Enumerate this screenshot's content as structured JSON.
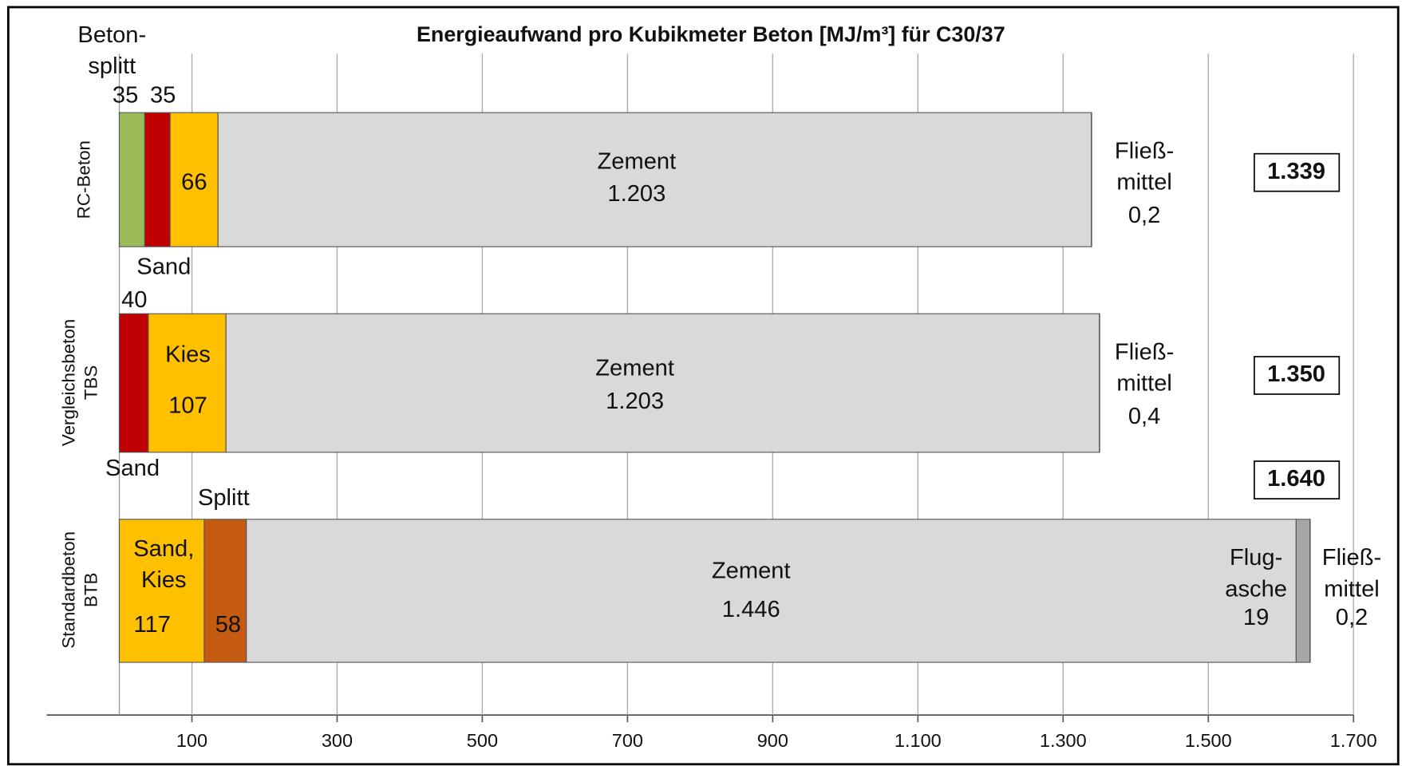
{
  "chart_data": {
    "type": "stacked-hbar",
    "title": "Energieaufwand pro Kubikmeter Beton [MJ/m³] für C30/37",
    "xlim": [
      -100,
      1700
    ],
    "xticks": [
      100,
      300,
      500,
      700,
      900,
      {
        "value": 1100,
        "label": "1.100"
      },
      {
        "value": 1300,
        "label": "1.300"
      },
      {
        "value": 1500,
        "label": "1.500"
      },
      {
        "value": 1700,
        "label": "1.700"
      }
    ],
    "grid": true,
    "bars": [
      {
        "category": "RC-Beton",
        "total": 1339,
        "total_label": "1.339",
        "segments": [
          {
            "name": "Beton-splitt",
            "value": 35,
            "color": "#9bbb59"
          },
          {
            "name": "Sand",
            "value": 35,
            "color": "#c00000"
          },
          {
            "name": "Kies",
            "value": 66,
            "color": "#ffc000"
          },
          {
            "name": "Zement",
            "value": 1203,
            "value_label": "1.203",
            "color": "#d9d9d9"
          },
          {
            "name": "Fließ-mittel",
            "value": 0.2,
            "value_label": "0,2",
            "color": "#a6a6a6"
          }
        ]
      },
      {
        "category": "Vergleichsbeton TBS",
        "total": 1350,
        "total_label": "1.350",
        "segments": [
          {
            "name": "Sand",
            "value": 40,
            "color": "#c00000"
          },
          {
            "name": "Kies",
            "value": 107,
            "color": "#ffc000"
          },
          {
            "name": "Zement",
            "value": 1203,
            "value_label": "1.203",
            "color": "#d9d9d9"
          },
          {
            "name": "Fließ-mittel",
            "value": 0.4,
            "value_label": "0,4",
            "color": "#a6a6a6"
          }
        ]
      },
      {
        "category": "Standardbeton BTB",
        "total": 1640,
        "total_label": "1.640",
        "segments": [
          {
            "name": "Sand, Kies",
            "value": 117,
            "color": "#ffc000"
          },
          {
            "name": "Splitt",
            "value": 58,
            "color": "#c55a11"
          },
          {
            "name": "Zement",
            "value": 1446,
            "value_label": "1.446",
            "color": "#d9d9d9"
          },
          {
            "name": "Flug-asche",
            "value": 19,
            "color": "#a6a6a6"
          },
          {
            "name": "Fließ-mittel",
            "value": 0.2,
            "value_label": "0,2",
            "color": "#a6a6a6"
          }
        ]
      }
    ]
  }
}
